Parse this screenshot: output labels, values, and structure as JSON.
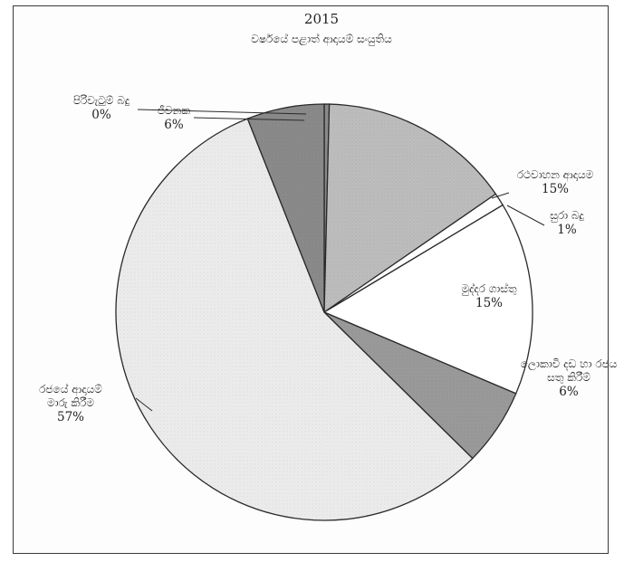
{
  "chart_data": {
    "type": "pie",
    "title": "2015",
    "subtitle": "වර්ෂයේ පළාත් ආදායම් සංයුතිය",
    "slices": [
      {
        "label": "පිරිවැටුම් බදු",
        "label_lines": [
          "පිරිවැටුම් බදු"
        ],
        "value": 0,
        "pct_label": "0%",
        "color": "#8c8c8c"
      },
      {
        "label": "රථවාහන ආදායම",
        "label_lines": [
          "රථවාහන ආදායම"
        ],
        "value": 15,
        "pct_label": "15%",
        "color": "#bdbdbd"
      },
      {
        "label": "සුරා බදු",
        "label_lines": [
          "සුරා බදු"
        ],
        "value": 1,
        "pct_label": "1%",
        "color": "#ffffff"
      },
      {
        "label": "මුද්දර ගාස්තු",
        "label_lines": [
          "මුද්දර ගාස්තු"
        ],
        "value": 15,
        "pct_label": "15%",
        "color": "#ffffff"
      },
      {
        "label": "ලොකාවි දඩ හා රජය සතු කිරීම්",
        "label_lines": [
          "ලොකාවි දඩ හා රජය",
          "සතු කිරීම්"
        ],
        "value": 6,
        "pct_label": "6%",
        "color": "#9a9a9a"
      },
      {
        "label": "රජයේ ආදායම් මාරු කිරීම",
        "label_lines": [
          "රජයේ ආදායම්",
          "මාරු කිරීම"
        ],
        "value": 57,
        "pct_label": "57%",
        "color": "#ececec"
      },
      {
        "label": "ජීවනක",
        "label_lines": [
          "ජීවනක"
        ],
        "value": 6,
        "pct_label": "6%",
        "color": "#8a8a8a"
      }
    ]
  }
}
